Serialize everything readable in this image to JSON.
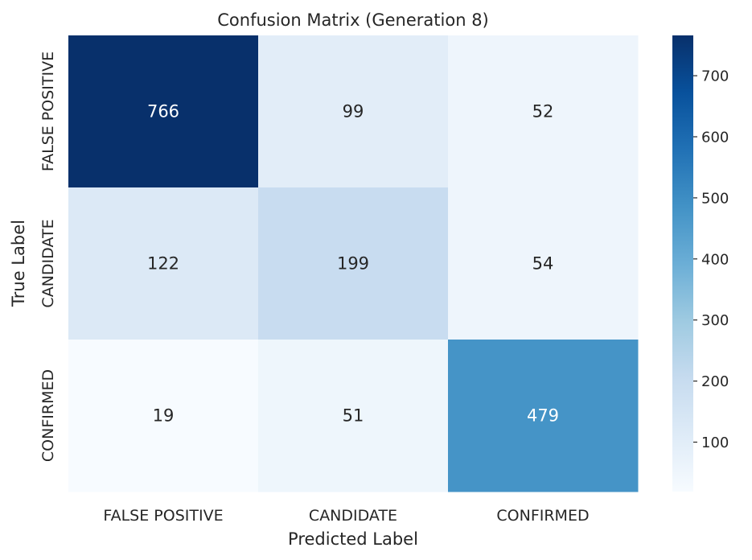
{
  "chart_data": {
    "type": "heatmap",
    "title": "Confusion Matrix (Generation 8)",
    "xlabel": "Predicted Label",
    "ylabel": "True Label",
    "x_categories": [
      "FALSE POSITIVE",
      "CANDIDATE",
      "CONFIRMED"
    ],
    "y_categories": [
      "FALSE POSITIVE",
      "CANDIDATE",
      "CONFIRMED"
    ],
    "values": [
      [
        766,
        99,
        52
      ],
      [
        122,
        199,
        54
      ],
      [
        19,
        51,
        479
      ]
    ],
    "colorscale": "Blues",
    "colorbar": {
      "min": 19,
      "max": 766,
      "ticks": [
        100,
        200,
        300,
        400,
        500,
        600,
        700
      ]
    }
  }
}
